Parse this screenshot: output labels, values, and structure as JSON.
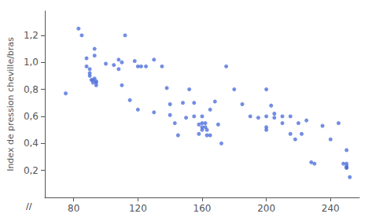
{
  "chart_data": {
    "type": "scatter",
    "ylabel": "Index de pression cheville/bras",
    "annotations": [
      "//"
    ],
    "marker": "circle",
    "grid": false,
    "x": [
      75,
      83,
      85,
      88,
      88,
      90,
      90,
      90,
      91,
      92,
      92,
      93,
      93,
      93,
      94,
      94,
      94,
      100,
      105,
      108,
      108,
      110,
      110,
      112,
      115,
      118,
      120,
      120,
      122,
      125,
      130,
      130,
      135,
      138,
      140,
      140,
      143,
      145,
      148,
      150,
      152,
      155,
      155,
      158,
      158,
      160,
      160,
      160,
      160,
      162,
      162,
      163,
      163,
      165,
      165,
      168,
      170,
      172,
      175,
      180,
      185,
      190,
      195,
      200,
      200,
      200,
      200,
      203,
      205,
      205,
      210,
      210,
      215,
      215,
      218,
      220,
      222,
      225,
      228,
      230,
      235,
      240,
      245,
      248,
      250,
      250,
      250,
      250,
      250,
      252
    ],
    "values": [
      0.77,
      1.25,
      1.2,
      1.03,
      0.97,
      0.95,
      0.92,
      0.9,
      0.87,
      0.87,
      0.85,
      1.1,
      1.05,
      0.88,
      0.86,
      0.85,
      0.83,
      0.99,
      0.98,
      1.02,
      0.95,
      1.0,
      0.83,
      1.2,
      0.72,
      1.01,
      0.97,
      0.65,
      0.97,
      0.97,
      1.02,
      0.63,
      0.97,
      0.81,
      0.69,
      0.61,
      0.55,
      0.46,
      0.7,
      0.59,
      0.8,
      0.7,
      0.6,
      0.54,
      0.47,
      0.6,
      0.55,
      0.52,
      0.5,
      0.55,
      0.52,
      0.5,
      0.46,
      0.65,
      0.46,
      0.71,
      0.54,
      0.4,
      0.97,
      0.8,
      0.69,
      0.6,
      0.59,
      0.8,
      0.6,
      0.52,
      0.5,
      0.68,
      0.62,
      0.59,
      0.6,
      0.55,
      0.6,
      0.47,
      0.43,
      0.55,
      0.47,
      0.57,
      0.26,
      0.25,
      0.53,
      0.43,
      0.55,
      0.25,
      0.35,
      0.25,
      0.23,
      0.22,
      0.22,
      0.15
    ],
    "xlim": [
      62,
      258
    ],
    "ylim": [
      0.0,
      1.38
    ],
    "xticks": [
      80,
      120,
      160,
      200,
      240
    ],
    "yticks": [
      {
        "value": 0.2,
        "label": "0,2"
      },
      {
        "value": 0.4,
        "label": "0,4"
      },
      {
        "value": 0.6,
        "label": "0,6"
      },
      {
        "value": 0.8,
        "label": "0,8"
      },
      {
        "value": 1.0,
        "label": "1,0"
      },
      {
        "value": 1.2,
        "label": "1,2"
      }
    ]
  }
}
